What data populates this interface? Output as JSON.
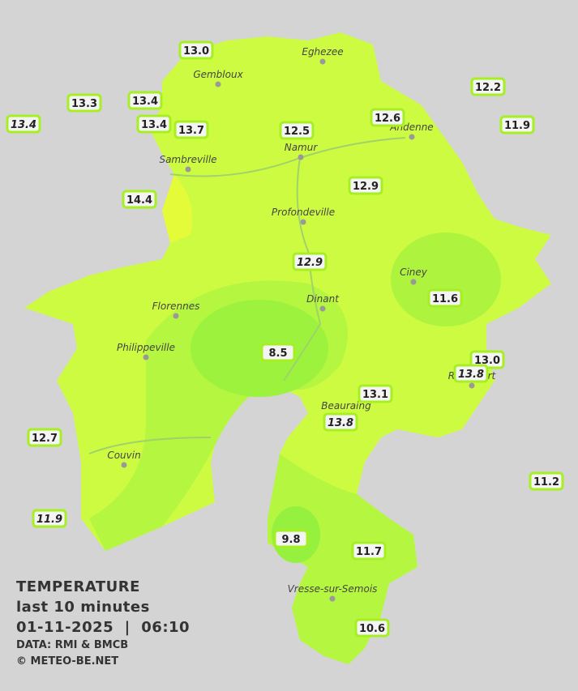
{
  "title": "TEMPERATURE",
  "subtitle": "last 10 minutes",
  "timestamp": "01-11-2025  |  06:10",
  "data_source": "DATA: RMI & BMCB",
  "copyright": "© METEO-BE.NET",
  "cities": [
    "Eghezee",
    "Gembloux",
    "Andenne",
    "Namur",
    "Sambreville",
    "Profondeville",
    "Ciney",
    "Dinant",
    "Florennes",
    "Philippeville",
    "Rochefort",
    "Beauraing",
    "Couvin",
    "Vresse-sur-Semois"
  ],
  "stations": [
    "13.0",
    "13.3",
    "13.4",
    "13.4",
    "13.4",
    "13.7",
    "12.5",
    "12.6",
    "12.2",
    "11.9",
    "14.4",
    "12.9",
    "12.9",
    "11.6",
    "8.5",
    "13.0",
    "13.8",
    "13.1",
    "13.8",
    "12.7",
    "11.2",
    "11.9",
    "9.8",
    "11.7",
    "10.6"
  ]
}
